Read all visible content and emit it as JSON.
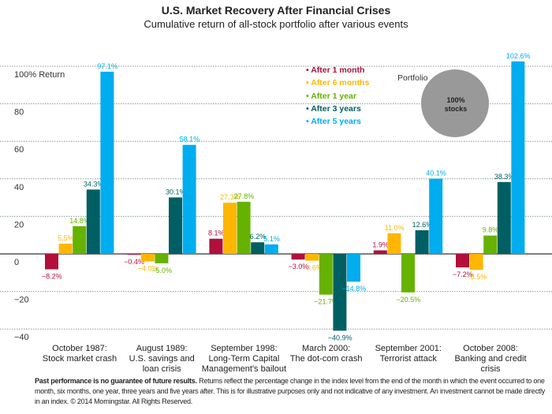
{
  "chart_data": {
    "type": "bar",
    "title": "U.S. Market Recovery After Financial Crises",
    "subtitle": "Cumulative return of all-stock portfolio after various events",
    "ylabel": "",
    "ylim": [
      -40,
      100
    ],
    "yticks": [
      {
        "value": 100,
        "label": "100% Return"
      },
      {
        "value": 80,
        "label": "80"
      },
      {
        "value": 60,
        "label": "60"
      },
      {
        "value": 40,
        "label": "40"
      },
      {
        "value": 20,
        "label": "20"
      },
      {
        "value": 0,
        "label": "0"
      },
      {
        "value": -20,
        "label": "−20"
      },
      {
        "value": -40,
        "label": "−40"
      }
    ],
    "grid": true,
    "legend_position": "top-center",
    "categories": [
      [
        "October 1987:",
        "Stock market crash"
      ],
      [
        "August 1989:",
        "U.S. savings and",
        "loan crisis"
      ],
      [
        "September 1998:",
        "Long-Term Capital",
        "Management's bailout"
      ],
      [
        "March 2000:",
        "The dot-com crash"
      ],
      [
        "September 2001:",
        "Terrorist attack"
      ],
      [
        "October 2008:",
        "Banking and credit",
        "crisis"
      ]
    ],
    "series": [
      {
        "name": "After 1 month",
        "color": "#b0103a",
        "values": [
          -8.2,
          -0.4,
          8.1,
          -3.0,
          1.9,
          -7.2
        ],
        "labels": [
          "−8.2%",
          "−0.4%",
          "8.1%",
          "−3.0%",
          "1.9%",
          "−7.2%"
        ]
      },
      {
        "name": "After 6 months",
        "color": "#ffb600",
        "values": [
          5.5,
          -4.0,
          27.3,
          -3.6,
          11.0,
          -8.5
        ],
        "labels": [
          "5.5%",
          "−4.0%",
          "27.3%",
          "−3.6%",
          "11.0%",
          "−8.5%"
        ]
      },
      {
        "name": "After 1 year",
        "color": "#66b200",
        "values": [
          14.8,
          -5.0,
          27.8,
          -21.7,
          -20.5,
          9.8
        ],
        "labels": [
          "14.8%",
          "−5.0%",
          "27.8%",
          "−21.7%",
          "−20.5%",
          "9.8%"
        ]
      },
      {
        "name": "After 3 years",
        "color": "#005f63",
        "values": [
          34.3,
          30.1,
          6.2,
          -40.9,
          12.6,
          38.3
        ],
        "labels": [
          "34.3%",
          "30.1%",
          "6.2%",
          "−40.9%",
          "12.6%",
          "38.3%"
        ]
      },
      {
        "name": "After 5 years",
        "color": "#00adee",
        "values": [
          97.1,
          58.1,
          5.1,
          -14.8,
          40.1,
          102.6
        ],
        "labels": [
          "97.1%",
          "58.1%",
          "5.1%",
          "−14.8%",
          "40.1%",
          "102.6%"
        ]
      }
    ]
  },
  "portfolio": {
    "label": "Portfolio",
    "line1": "100%",
    "line2": "stocks",
    "color": "#999999"
  },
  "footer": {
    "bold": "Past performance is no guarantee of future results.",
    "text": " Returns reflect the percentage change in the index level from the end of the month in which the event occurred to one month, six months, one year, three years and five years after. This is for illustrative purposes only and not indicative of any investment. An investment cannot be made directly in an index. © 2014 Morningstar. All Rights Reserved."
  }
}
